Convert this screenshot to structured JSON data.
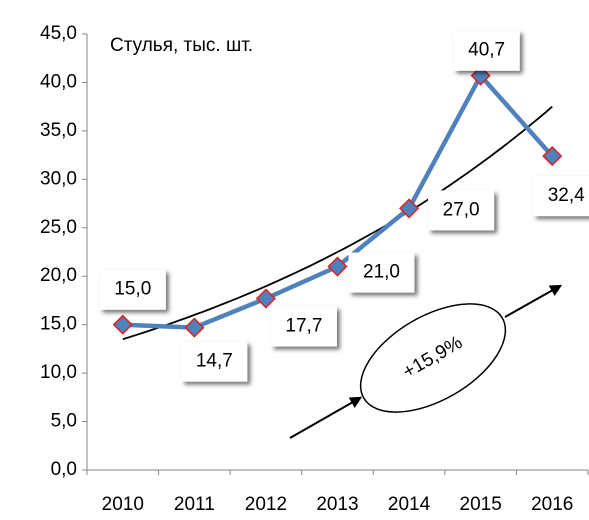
{
  "chart_data": {
    "type": "line",
    "title": "Стулья, тыс. шт.",
    "categories": [
      "2010",
      "2011",
      "2012",
      "2013",
      "2014",
      "2015",
      "2016"
    ],
    "series": [
      {
        "name": "Стулья, тыс. шт.",
        "color": "#4f81bd",
        "values": [
          15.0,
          14.7,
          17.7,
          21.0,
          27.0,
          40.7,
          32.4
        ],
        "value_labels": [
          "15,0",
          "14,7",
          "17,7",
          "21,0",
          "27,0",
          "40,7",
          "32,4"
        ]
      }
    ],
    "ylim": [
      0,
      45
    ],
    "yticks": [
      {
        "value": 0,
        "label": "0,0"
      },
      {
        "value": 5,
        "label": "5,0"
      },
      {
        "value": 10,
        "label": "10,0"
      },
      {
        "value": 15,
        "label": "15,0"
      },
      {
        "value": 20,
        "label": "20,0"
      },
      {
        "value": 25,
        "label": "25,0"
      },
      {
        "value": 30,
        "label": "30,0"
      },
      {
        "value": 35,
        "label": "35,0"
      },
      {
        "value": 40,
        "label": "40,0"
      },
      {
        "value": 45,
        "label": "45,0"
      }
    ],
    "trendline": "exponential",
    "annotation": "+15,9%"
  }
}
